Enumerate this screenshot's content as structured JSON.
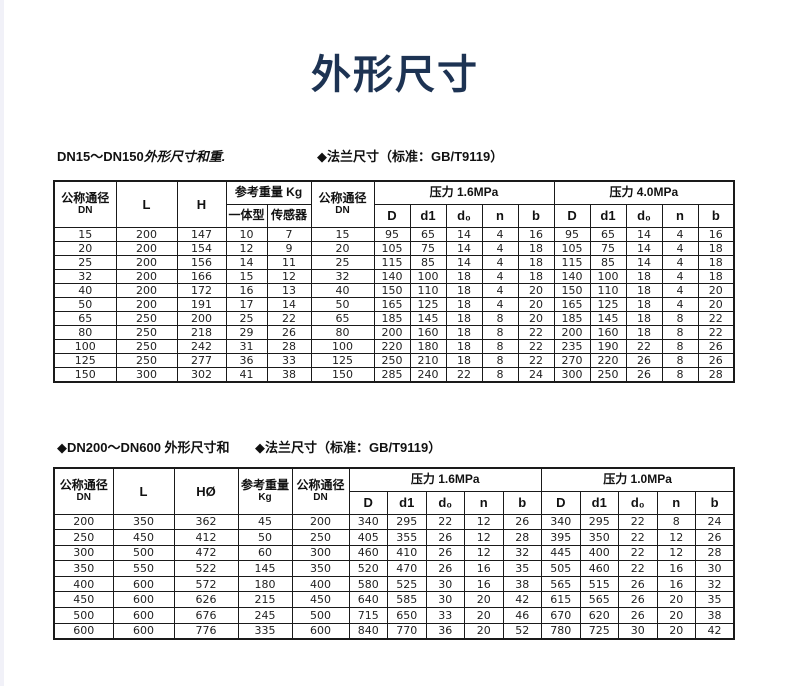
{
  "page": {
    "title": "外形尺寸",
    "accent_color": "#1d3353",
    "background": "#ffffff",
    "left_strip_color": "#f1f1f8"
  },
  "sections": [
    {
      "left_prefix": "DN15～DN150",
      "left_italic": "外形尺寸和重.",
      "right": "◆法兰尺寸（标准：GB/T9119）"
    },
    {
      "left": "◆DN200～DN600 外形尺寸和",
      "right": "◆法兰尺寸（标准：GB/T9119）"
    }
  ],
  "table1": {
    "header": {
      "dn": "公称通径",
      "dn_sub": "DN",
      "l": "L",
      "h": "H",
      "weight": "参考重量 Kg",
      "weight_sub1": "一体型",
      "weight_sub2": "传感器",
      "dn2": "公称通径",
      "dn2_sub": "DN",
      "pressure1": "压力 1.6MPa",
      "pressure2": "压力 4.0MPa",
      "flange": [
        "D",
        "d1",
        "d₀",
        "n",
        "b"
      ]
    },
    "rows": [
      [
        15,
        200,
        147,
        10,
        7,
        15,
        95,
        65,
        14,
        4,
        16,
        95,
        65,
        14,
        4,
        16
      ],
      [
        20,
        200,
        154,
        12,
        9,
        20,
        105,
        75,
        14,
        4,
        18,
        105,
        75,
        14,
        4,
        18
      ],
      [
        25,
        200,
        156,
        14,
        11,
        25,
        115,
        85,
        14,
        4,
        18,
        115,
        85,
        14,
        4,
        18
      ],
      [
        32,
        200,
        166,
        15,
        12,
        32,
        140,
        100,
        18,
        4,
        18,
        140,
        100,
        18,
        4,
        18
      ],
      [
        40,
        200,
        172,
        16,
        13,
        40,
        150,
        110,
        18,
        4,
        20,
        150,
        110,
        18,
        4,
        20
      ],
      [
        50,
        200,
        191,
        17,
        14,
        50,
        165,
        125,
        18,
        4,
        20,
        165,
        125,
        18,
        4,
        20
      ],
      [
        65,
        250,
        200,
        25,
        22,
        65,
        185,
        145,
        18,
        8,
        20,
        185,
        145,
        18,
        8,
        22
      ],
      [
        80,
        250,
        218,
        29,
        26,
        80,
        200,
        160,
        18,
        8,
        22,
        200,
        160,
        18,
        8,
        22
      ],
      [
        100,
        250,
        242,
        31,
        28,
        100,
        220,
        180,
        18,
        8,
        22,
        235,
        190,
        22,
        8,
        26
      ],
      [
        125,
        250,
        277,
        36,
        33,
        125,
        250,
        210,
        18,
        8,
        22,
        270,
        220,
        26,
        8,
        26
      ],
      [
        150,
        300,
        302,
        41,
        38,
        150,
        285,
        240,
        22,
        8,
        24,
        300,
        250,
        26,
        8,
        28
      ]
    ]
  },
  "table2": {
    "header": {
      "dn": "公称通径",
      "dn_sub": "DN",
      "l": "L",
      "h": "HØ",
      "weight": "参考重量",
      "weight_sub": "Kg",
      "dn2": "公称通径",
      "dn2_sub": "DN",
      "pressure1": "压力 1.6MPa",
      "pressure2": "压力 1.0MPa",
      "flange": [
        "D",
        "d1",
        "d₀",
        "n",
        "b"
      ]
    },
    "rows": [
      [
        200,
        350,
        362,
        45,
        200,
        340,
        295,
        22,
        12,
        26,
        340,
        295,
        22,
        8,
        24
      ],
      [
        250,
        450,
        412,
        50,
        250,
        405,
        355,
        26,
        12,
        28,
        395,
        350,
        22,
        12,
        26
      ],
      [
        300,
        500,
        472,
        60,
        300,
        460,
        410,
        26,
        12,
        32,
        445,
        400,
        22,
        12,
        28
      ],
      [
        350,
        550,
        522,
        145,
        350,
        520,
        470,
        26,
        16,
        35,
        505,
        460,
        22,
        16,
        30
      ],
      [
        400,
        600,
        572,
        180,
        400,
        580,
        525,
        30,
        16,
        38,
        565,
        515,
        26,
        16,
        32
      ],
      [
        450,
        600,
        626,
        215,
        450,
        640,
        585,
        30,
        20,
        42,
        615,
        565,
        26,
        20,
        35
      ],
      [
        500,
        600,
        676,
        245,
        500,
        715,
        650,
        33,
        20,
        46,
        670,
        620,
        26,
        20,
        38
      ],
      [
        600,
        600,
        776,
        335,
        600,
        840,
        770,
        36,
        20,
        52,
        780,
        725,
        30,
        20,
        42
      ]
    ]
  }
}
